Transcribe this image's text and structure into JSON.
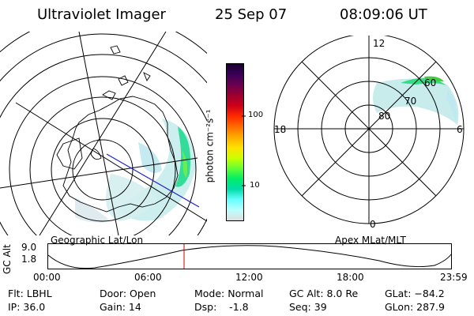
{
  "header": {
    "instrument": "Ultraviolet Imager",
    "date": "25 Sep 07",
    "time": "08:09:06 UT"
  },
  "left_panel": {
    "label": "Geographic Lat/Lon"
  },
  "right_panel": {
    "label": "Apex MLat/MLT",
    "mlt_labels": {
      "top": "12",
      "left": "18",
      "right": "6",
      "bottom": "0"
    },
    "lat_labels": [
      "80",
      "70",
      "60"
    ]
  },
  "colorbar": {
    "unit_label": "photon cm⁻²s⁻¹",
    "ticks": [
      "100",
      "10"
    ],
    "colors": [
      "#1a0033",
      "#3a0057",
      "#6a0050",
      "#9c0030",
      "#cc0018",
      "#ff2a00",
      "#ff6a00",
      "#ffaa00",
      "#ffe000",
      "#ccff00",
      "#66ff33",
      "#00ee66",
      "#00ddaa",
      "#66ffff",
      "#bbffff",
      "#dddddd"
    ]
  },
  "timeline": {
    "ylabel": "GC Alt",
    "yticks": [
      "9.0",
      "1.8"
    ],
    "xticks": [
      "00:00",
      "06:00",
      "12:00",
      "18:00",
      "23:59"
    ],
    "marker_time": "08:09"
  },
  "info": {
    "flt": "Flt: LBHL",
    "ip": "IP: 36.0",
    "door": "Door: Open",
    "gain": "Gain: 14",
    "mode": "Mode: Normal",
    "dsp": "Dsp:    -1.8",
    "gc_alt": "GC Alt: 8.0 Re",
    "seq": "Seq: 39",
    "glat": "GLat: −84.2",
    "glon": "GLon: 287.9"
  }
}
